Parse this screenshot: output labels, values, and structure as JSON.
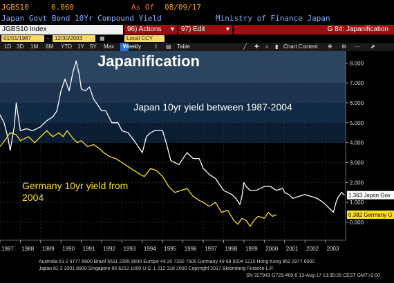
{
  "header": {
    "ticker": "JGBS10",
    "price": "0.060",
    "asof_label": "As Of",
    "asof_date": "08/09/17",
    "security_name": "Japan Govt Bond 10Yr Compound Yield",
    "issuer": "Ministry of Finance Japan"
  },
  "command": {
    "field_value": "JGBS10 Index",
    "actions_label": "96) Actions",
    "edit_label": "97) Edit",
    "function_title": "G 84: Japanification"
  },
  "datebar": {
    "start_date": "01/01/1987",
    "end_date": "12/30/2003",
    "currency": "Local CCY"
  },
  "toolbar": {
    "ranges": [
      "1D",
      "3D",
      "1M",
      "6M",
      "YTD",
      "1Y",
      "5Y",
      "Max"
    ],
    "frequency": "Weekly",
    "table_label": "Table",
    "chart_content_label": "Chart Content",
    "icons": [
      "draw-line-icon",
      "draw-plus-icon",
      "zoom-icon",
      "pan-icon",
      "chart-settings-icon",
      "more-options-icon",
      "export-icon"
    ]
  },
  "chart_data": {
    "type": "line",
    "title": "Japanification",
    "annotations": [
      "Japan 10yr yield between 1987-2004",
      "Germany 10yr yield from\n2004"
    ],
    "xlim": [
      1987,
      2004
    ],
    "ylim": [
      -0.9,
      8.6
    ],
    "y_ticks": [
      "8.000",
      "7.000",
      "6.000",
      "5.000",
      "4.000",
      "3.000",
      "2.000",
      "1.000",
      "0.000"
    ],
    "x_ticks": [
      "1987",
      "1988",
      "1989",
      "1990",
      "1991",
      "1992",
      "1993",
      "1994",
      "1995",
      "1996",
      "1997",
      "1998",
      "1999",
      "2000",
      "2001",
      "2002",
      "2003"
    ],
    "bands": [
      {
        "from": 7.0,
        "to": 8.6,
        "color": "#2b4560"
      },
      {
        "from": 6.0,
        "to": 7.0,
        "color": "#1d3350"
      },
      {
        "from": 5.0,
        "to": 6.0,
        "color": "#102a45"
      },
      {
        "from": 4.0,
        "to": 5.0,
        "color": "#0a1d33"
      }
    ],
    "series": [
      {
        "name": "Japan Gov",
        "color": "#ffffff",
        "last_label": "1.363",
        "x": [
          1987.0,
          1987.2,
          1987.4,
          1987.5,
          1987.7,
          1987.8,
          1988.0,
          1988.3,
          1988.6,
          1989.0,
          1989.3,
          1989.6,
          1989.8,
          1990.0,
          1990.2,
          1990.4,
          1990.6,
          1990.75,
          1990.9,
          1991.0,
          1991.2,
          1991.4,
          1991.6,
          1991.8,
          1992.0,
          1992.2,
          1992.5,
          1992.8,
          1993.0,
          1993.3,
          1993.6,
          1993.8,
          1994.0,
          1994.2,
          1994.4,
          1994.6,
          1994.8,
          1995.0,
          1995.2,
          1995.4,
          1995.6,
          1995.8,
          1996.0,
          1996.2,
          1996.5,
          1996.8,
          1997.0,
          1997.3,
          1997.6,
          1997.8,
          1998.0,
          1998.2,
          1998.4,
          1998.6,
          1998.8,
          1998.9,
          1999.0,
          1999.1,
          1999.3,
          1999.6,
          2000.0,
          2000.3,
          2000.6,
          2000.9,
          2001.0,
          2001.2,
          2001.4,
          2001.7,
          2002.0,
          2002.3,
          2002.6,
          2002.9,
          2003.2,
          2003.4,
          2003.5,
          2003.6,
          2003.8,
          2003.95
        ],
        "y": [
          5.4,
          5.0,
          4.2,
          3.6,
          4.8,
          6.0,
          4.6,
          4.7,
          4.6,
          4.8,
          5.1,
          5.3,
          5.6,
          6.6,
          7.2,
          6.6,
          7.6,
          8.1,
          7.4,
          6.7,
          6.6,
          6.8,
          6.2,
          5.9,
          5.6,
          5.6,
          5.0,
          5.0,
          4.6,
          4.5,
          4.1,
          3.8,
          3.5,
          4.3,
          4.5,
          4.6,
          4.6,
          4.6,
          3.9,
          3.1,
          3.0,
          2.9,
          3.2,
          3.5,
          3.2,
          3.2,
          2.7,
          2.4,
          2.2,
          1.9,
          1.6,
          1.5,
          1.4,
          1.2,
          0.9,
          1.3,
          2.0,
          1.8,
          1.6,
          1.6,
          1.8,
          1.8,
          1.6,
          1.7,
          1.5,
          1.4,
          1.2,
          1.3,
          1.4,
          1.3,
          1.2,
          1.0,
          0.7,
          0.5,
          0.9,
          1.2,
          1.5,
          1.363
        ]
      },
      {
        "name": "Germany G",
        "color": "#ffe21f",
        "last_label": "0.382",
        "x": [
          1987.0,
          1987.3,
          1987.5,
          1987.8,
          1988.0,
          1988.4,
          1988.7,
          1989.0,
          1989.3,
          1989.6,
          1989.9,
          1990.1,
          1990.3,
          1990.6,
          1990.8,
          1991.0,
          1991.3,
          1991.6,
          1991.9,
          1992.1,
          1992.4,
          1992.7,
          1993.0,
          1993.3,
          1993.6,
          1993.9,
          1994.1,
          1994.4,
          1994.7,
          1995.0,
          1995.3,
          1995.6,
          1995.9,
          1996.2,
          1996.5,
          1996.8,
          1997.0,
          1997.3,
          1997.6,
          1997.9,
          1998.2,
          1998.5,
          1998.7,
          1998.9,
          1999.1,
          1999.3,
          1999.5,
          1999.7,
          2000.0,
          2000.2,
          2000.4,
          2000.6
        ],
        "y": [
          3.8,
          4.2,
          4.5,
          4.4,
          4.1,
          4.3,
          4.0,
          4.3,
          4.6,
          4.3,
          4.5,
          4.3,
          4.6,
          4.2,
          4.0,
          4.1,
          3.8,
          3.9,
          3.7,
          3.5,
          3.3,
          3.2,
          3.0,
          2.8,
          2.6,
          2.4,
          2.3,
          2.7,
          2.6,
          2.3,
          1.8,
          1.5,
          1.6,
          1.7,
          1.3,
          1.1,
          1.0,
          0.8,
          1.0,
          0.5,
          0.6,
          0.1,
          -0.1,
          0.2,
          0.1,
          -0.2,
          0.1,
          0.3,
          0.2,
          0.5,
          0.3,
          0.382
        ]
      }
    ]
  },
  "footer": {
    "line1": "Australia 61 2 9777 8600  Brazil 5511 2395 9000  Europe 44 20 7330 7500  Germany 49 69 9204 1210  Hong Kong 852 2977 6000",
    "line2": "Japan 81 3 3201 8900        Singapore 65 6212 1000        U.S. 1 212 318 2000        Copyright 2017 Bloomberg Finance L.P.",
    "line3": "SN 327943 G729-469-0 13-Aug-17 13:35:28 CEST GMT+2:00"
  }
}
